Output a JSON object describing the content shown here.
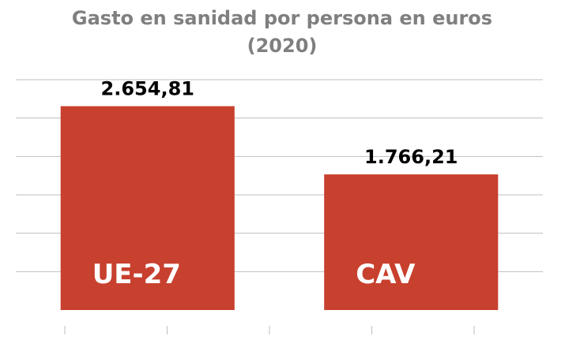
{
  "chart_data": {
    "type": "bar",
    "title_lines": [
      "Gasto en sanidad por persona en euros",
      "(2020)"
    ],
    "categories": [
      "UE-27",
      "CAV"
    ],
    "values": [
      2654.81,
      1766.21
    ],
    "value_labels": [
      "2.654,81",
      "1.766,21"
    ],
    "ylim": [
      0,
      3000
    ],
    "grid": true,
    "legend": "none",
    "colors": {
      "bar": "#c8402e",
      "grid": "#bfbfbf",
      "title": "#7f7f7f",
      "value_label": "#000000",
      "category_label": "#ffffff"
    }
  }
}
